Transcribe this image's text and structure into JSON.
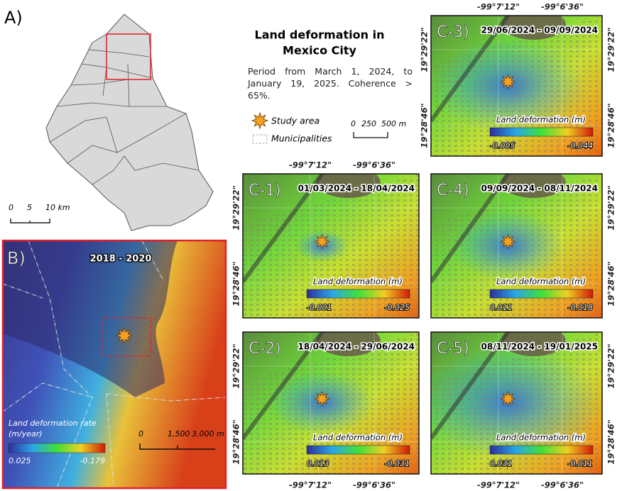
{
  "panel_a": {
    "label": "A)",
    "scale_labels": [
      "0",
      "5",
      "10 km"
    ]
  },
  "panel_b": {
    "label": "B)",
    "period": "2018 - 2020",
    "legend_title": "Land deformation rate",
    "legend_unit": "(m/year)",
    "min": "0.025",
    "max": "-0.179",
    "scale_labels": [
      "0",
      "1,500",
      "3,000 m"
    ]
  },
  "title": [
    "Land deformation in",
    "Mexico City"
  ],
  "description": "Period from March 1, 2024, to January 19, 2025. Coherence > 65%.",
  "legend": {
    "study_area": "Study area",
    "municipalities": "Municipalities",
    "scale_labels": [
      "0",
      "250",
      "500 m"
    ]
  },
  "coordinates": {
    "lon": [
      "-99°7'12\"",
      "-99°6'36\""
    ],
    "lat": [
      "19°29'22\"",
      "19°28'46\""
    ]
  },
  "panels": [
    {
      "label": "C-1)",
      "dates": "01/03/2024 - 18/04/2024",
      "legend": "Land deformation (m)",
      "min": "-0.001",
      "max": "-0.025"
    },
    {
      "label": "C-2)",
      "dates": "18/04/2024 - 29/06/2024",
      "legend": "Land deformation (m)",
      "min": "0.013",
      "max": "-0.031"
    },
    {
      "label": "C-3)",
      "dates": "29/06/2024 - 09/09/2024",
      "legend": "Land deformation (m)",
      "min": "-0.005",
      "max": "-0.044"
    },
    {
      "label": "C-4)",
      "dates": "09/09/2024 - 08/11/2024",
      "legend": "Land deformation (m)",
      "min": "0.011",
      "max": "-0.018"
    },
    {
      "label": "C-5)",
      "dates": "08/11/2024 - 19/01/2025",
      "legend": "Land deformation (m)",
      "min": "0.031",
      "max": "-0.011"
    }
  ]
}
